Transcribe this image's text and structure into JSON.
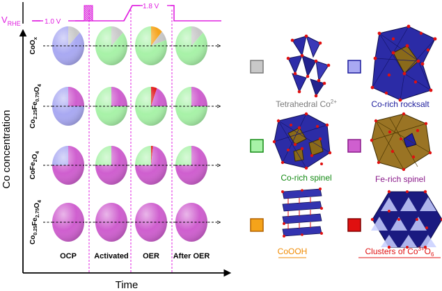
{
  "potential_axis": {
    "label_main": "V",
    "label_sub": "RHE",
    "value_low": "1.0 V",
    "value_high": "1.8 V"
  },
  "axes": {
    "y_label": "Co concentration",
    "x_label": "Time"
  },
  "stages": [
    "OCP",
    "Activated",
    "OER",
    "After OER"
  ],
  "rows": [
    {
      "name": "CoOx",
      "formula_parts": [
        [
          "Co",
          ""
        ],
        [
          "O",
          "x"
        ]
      ]
    },
    {
      "name": "Co2.25Fe0.75O4",
      "formula_parts": [
        [
          "Co",
          "2.25"
        ],
        [
          "Fe",
          "0.75"
        ],
        [
          "O",
          "4"
        ]
      ]
    },
    {
      "name": "CoFe2O4",
      "formula_parts": [
        [
          "Co",
          ""
        ],
        [
          "Fe",
          "2"
        ],
        [
          "O",
          "4"
        ]
      ]
    },
    {
      "name": "Co0.25Fe2.75O4",
      "formula_parts": [
        [
          "Co",
          "0.25"
        ],
        [
          "Fe",
          "2.75"
        ],
        [
          "O",
          "4"
        ]
      ]
    }
  ],
  "phase_colors": {
    "tetrahedral_co": "#c8c8c8",
    "co_rich_rocksalt": "#a9a9f2",
    "co_rich_spinel": "#a8f2a8",
    "fe_rich_spinel": "#cf5fcf",
    "coooh": "#f5a31a",
    "co3_clusters": "#e01010"
  },
  "pie_fractions": {
    "note": "fraction of each pie (clockwise from 12 o'clock) per phase",
    "row_0": [
      {
        "tetrahedral_co": 0.13,
        "co_rich_rocksalt": 0.87
      },
      {
        "tetrahedral_co": 0.13,
        "co_rich_spinel": 0.87
      },
      {
        "coooh": 0.12,
        "tetrahedral_co": 0.08,
        "co_rich_spinel": 0.8
      },
      {
        "tetrahedral_co": 0.13,
        "co_rich_spinel": 0.87
      }
    ],
    "row_1": [
      {
        "fe_rich_spinel": 0.25,
        "co_rich_rocksalt": 0.75
      },
      {
        "fe_rich_spinel": 0.25,
        "co_rich_spinel": 0.75
      },
      {
        "co3_clusters": 0.06,
        "fe_rich_spinel": 0.19,
        "co_rich_spinel": 0.75
      },
      {
        "fe_rich_spinel": 0.25,
        "co_rich_spinel": 0.75
      }
    ],
    "row_2": [
      {
        "fe_rich_spinel": 0.75,
        "co_rich_rocksalt": 0.25
      },
      {
        "fe_rich_spinel": 0.75,
        "co_rich_spinel": 0.25
      },
      {
        "co3_clusters": 0.02,
        "fe_rich_spinel": 0.73,
        "co_rich_spinel": 0.25
      },
      {
        "fe_rich_spinel": 0.75,
        "co_rich_spinel": 0.25
      }
    ],
    "row_3": [
      {
        "fe_rich_spinel": 1.0
      },
      {
        "fe_rich_spinel": 1.0
      },
      {
        "fe_rich_spinel": 1.0
      },
      {
        "fe_rich_spinel": 1.0
      }
    ]
  },
  "legend": [
    {
      "key": "tetrahedral_co",
      "label_main": "Tetrahedral Co",
      "label_sup": "2+",
      "text_color": "#7a7a7a",
      "swatch_border": "#7a7a7a",
      "swatch_fill": "#c8c8c8"
    },
    {
      "key": "co_rich_rocksalt",
      "label_main": "Co-rich rocksalt",
      "label_sup": "",
      "text_color": "#1c1c9c",
      "swatch_border": "#1c1c9c",
      "swatch_fill": "#a9a9f2"
    },
    {
      "key": "co_rich_spinel",
      "label_main": "Co-rich spinel",
      "label_sup": "",
      "text_color": "#138a13",
      "swatch_border": "#138a13",
      "swatch_fill": "#a8f2a8"
    },
    {
      "key": "fe_rich_spinel",
      "label_main": "Fe-rich spinel",
      "label_sup": "",
      "text_color": "#8a1b8a",
      "swatch_border": "#8a1b8a",
      "swatch_fill": "#cf5fcf"
    },
    {
      "key": "coooh",
      "label_main": "CoOOH",
      "label_sup": "",
      "text_color": "#f08a00",
      "swatch_border": "#b06000",
      "swatch_fill": "#f5a31a"
    },
    {
      "key": "co3_clusters",
      "label_main": "Clusters of Co",
      "label_sup": "3+",
      "label_tail": "O",
      "label_tail_sub": "6",
      "text_color": "#e01010",
      "swatch_border": "#800000",
      "swatch_fill": "#e01010"
    }
  ]
}
